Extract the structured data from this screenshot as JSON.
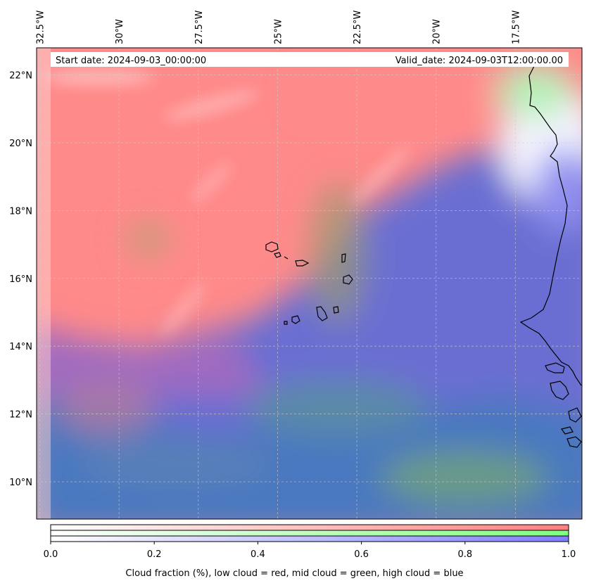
{
  "header": {
    "start_date": "Start date: 2024-09-03_00:00:00",
    "valid_date": "Valid_date: 2024-09-03T12:00:00.00"
  },
  "axes": {
    "lon_labels": [
      "32.5°W",
      "30°W",
      "27.5°W",
      "25°W",
      "22.5°W",
      "20°W",
      "17.5°W"
    ],
    "lat_labels": [
      "22°N",
      "20°N",
      "18°N",
      "16°N",
      "14°N",
      "12°N",
      "10°N"
    ],
    "lon_values": [
      -32.5,
      -30,
      -27.5,
      -25,
      -22.5,
      -20,
      -17.5
    ],
    "lat_values": [
      22,
      20,
      18,
      16,
      14,
      12,
      10
    ],
    "lon_range": [
      -32.6,
      -15.4
    ],
    "lat_range": [
      8.9,
      22.8
    ],
    "gridlines": true
  },
  "colorbar": {
    "ticks": [
      "0.0",
      "0.2",
      "0.4",
      "0.6",
      "0.8",
      "1.0"
    ],
    "tick_values": [
      0,
      0.2,
      0.4,
      0.6,
      0.8,
      1.0
    ],
    "label": "Cloud fraction (%), low cloud = red, mid cloud = green, high cloud = blue",
    "colors": {
      "low": "#ff7f7f",
      "mid": "#7fff7f",
      "high": "#7f7fff"
    }
  }
}
